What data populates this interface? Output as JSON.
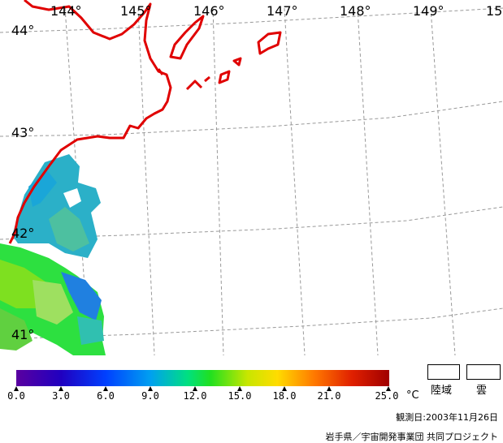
{
  "map": {
    "lon_labels": [
      "144°",
      "145°",
      "146°",
      "147°",
      "148°",
      "149°",
      "15"
    ],
    "lat_labels": [
      "44°",
      "43°",
      "42°",
      "41°"
    ]
  },
  "legend": {
    "ticks": [
      "0.0",
      "3.0",
      "6.0",
      "9.0",
      "12.0",
      "15.0",
      "18.0",
      "21.0",
      "25.0"
    ],
    "unit": "°C",
    "land_label": "陸域",
    "cloud_label": "雲"
  },
  "footer": {
    "observation": "観測日:2003年11月26日",
    "credit": "岩手県／宇宙開発事業団 共同プロジェクト"
  },
  "colors": {
    "coast": "#e00000",
    "grid": "#999999",
    "scale": [
      "#5a00a0",
      "#0000c8",
      "#0064ff",
      "#00b4e6",
      "#00dc3c",
      "#b4e600",
      "#ffdc00",
      "#ff7800",
      "#e01400",
      "#a00000"
    ]
  }
}
